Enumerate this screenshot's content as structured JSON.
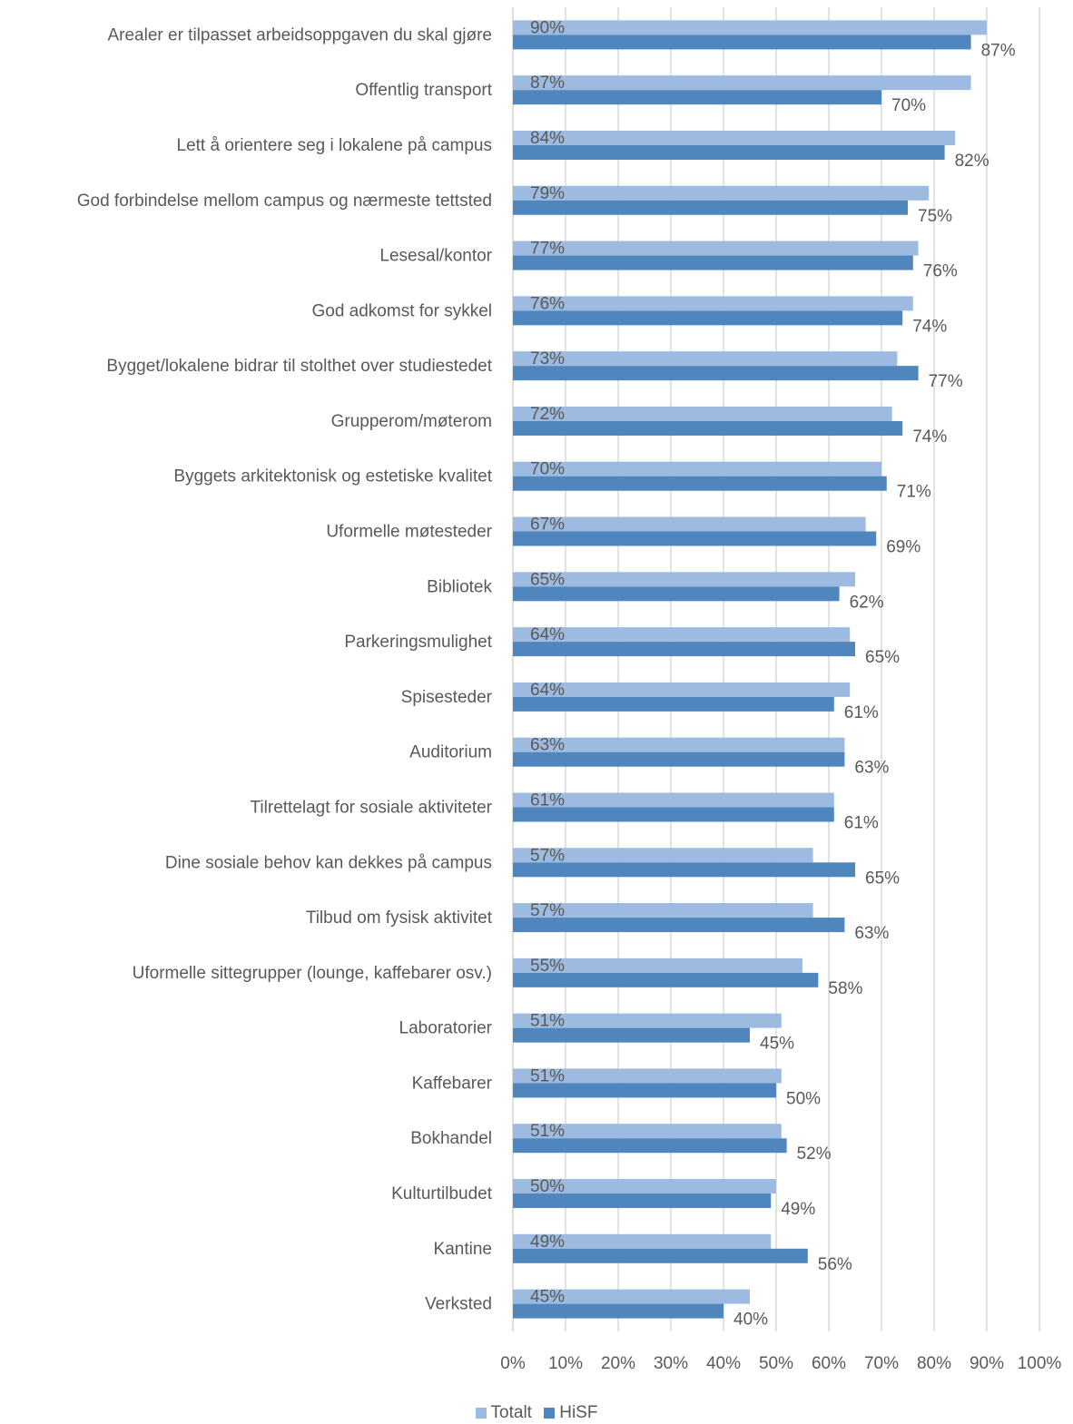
{
  "chart_data": {
    "type": "bar",
    "orientation": "horizontal",
    "categories": [
      "Arealer er tilpasset arbeidsoppgaven du skal gjøre",
      "Offentlig transport",
      "Lett å orientere seg i lokalene på campus",
      "God forbindelse mellom campus og nærmeste tettsted",
      "Lesesal/kontor",
      "God adkomst for sykkel",
      "Bygget/lokalene bidrar til stolthet over studiestedet",
      "Grupperom/møterom",
      "Byggets arkitektonisk og estetiske kvalitet",
      "Uformelle møtesteder",
      "Bibliotek",
      "Parkeringsmulighet",
      "Spisesteder",
      "Auditorium",
      "Tilrettelagt for sosiale aktiviteter",
      "Dine sosiale behov kan dekkes på campus",
      "Tilbud om fysisk aktivitet",
      "Uformelle sittegrupper (lounge, kaffebarer osv.)",
      "Laboratorier",
      "Kaffebarer",
      "Bokhandel",
      "Kulturtilbudet",
      "Kantine",
      "Verksted"
    ],
    "series": [
      {
        "name": "Totalt",
        "color": "#9dbbe0",
        "values": [
          90,
          87,
          84,
          79,
          77,
          76,
          73,
          72,
          70,
          67,
          65,
          64,
          64,
          63,
          61,
          57,
          57,
          55,
          51,
          51,
          51,
          50,
          49,
          45
        ],
        "labels": [
          "90%",
          "87%",
          "84%",
          "79%",
          "77%",
          "76%",
          "73%",
          "72%",
          "70%",
          "67%",
          "65%",
          "64%",
          "64%",
          "63%",
          "61%",
          "57%",
          "57%",
          "55%",
          "51%",
          "51%",
          "51%",
          "50%",
          "49%",
          "45%"
        ]
      },
      {
        "name": "HiSF",
        "color": "#4f86be",
        "values": [
          87,
          70,
          82,
          75,
          76,
          74,
          77,
          74,
          71,
          69,
          62,
          65,
          61,
          63,
          61,
          65,
          63,
          58,
          45,
          50,
          52,
          49,
          56,
          40
        ],
        "labels": [
          "87%",
          "70%",
          "82%",
          "75%",
          "76%",
          "74%",
          "77%",
          "74%",
          "71%",
          "69%",
          "62%",
          "65%",
          "61%",
          "63%",
          "61%",
          "65%",
          "63%",
          "58%",
          "45%",
          "50%",
          "52%",
          "49%",
          "56%",
          "40%"
        ]
      }
    ],
    "xlim": [
      0,
      100
    ],
    "xticks": [
      "0%",
      "10%",
      "20%",
      "30%",
      "40%",
      "50%",
      "60%",
      "70%",
      "80%",
      "90%",
      "100%"
    ],
    "grid": true,
    "legend": "bottom-center"
  }
}
